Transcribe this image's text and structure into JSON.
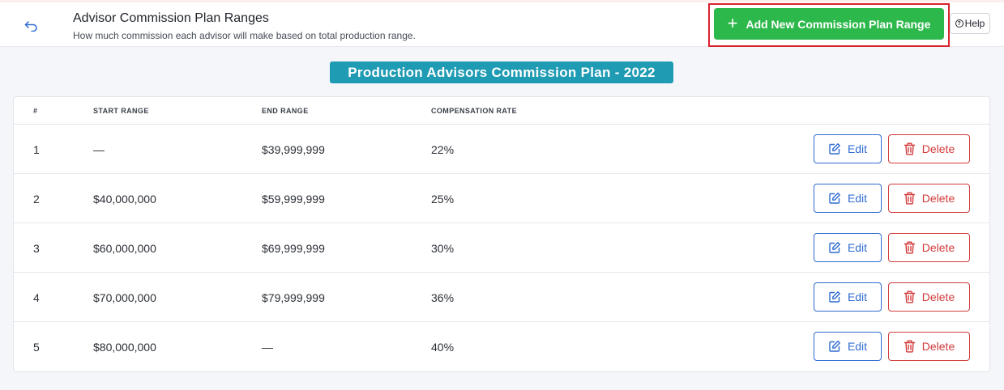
{
  "header": {
    "title": "Advisor Commission Plan Ranges",
    "subtitle": "How much commission each advisor will make based on total production range.",
    "add_button_label": "Add New Commission Plan Range",
    "add_button_icon": "plus-icon",
    "help_label": "Help",
    "back_icon": "back-arrow-icon"
  },
  "plan": {
    "title": "Production Advisors Commission Plan - 2022"
  },
  "table": {
    "columns": [
      "#",
      "START RANGE",
      "END RANGE",
      "COMPENSATION RATE"
    ],
    "rows": [
      {
        "num": "1",
        "start": "—",
        "end": "$39,999,999",
        "rate": "22%"
      },
      {
        "num": "2",
        "start": "$40,000,000",
        "end": "$59,999,999",
        "rate": "25%"
      },
      {
        "num": "3",
        "start": "$60,000,000",
        "end": "$69,999,999",
        "rate": "30%"
      },
      {
        "num": "4",
        "start": "$70,000,000",
        "end": "$79,999,999",
        "rate": "36%"
      },
      {
        "num": "5",
        "start": "$80,000,000",
        "end": "—",
        "rate": "40%"
      }
    ],
    "edit_label": "Edit",
    "delete_label": "Delete"
  },
  "colors": {
    "primary_green": "#2db84b",
    "badge_teal": "#1f9bb3",
    "edit_blue": "#2f6bd1",
    "delete_red": "#d23a3a",
    "highlight_red": "#d9232d"
  }
}
